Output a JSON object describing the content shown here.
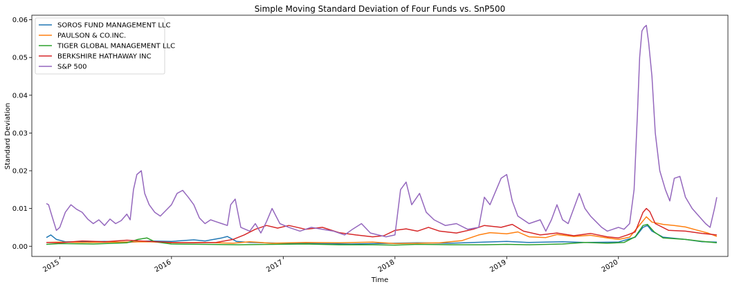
{
  "chart_data": {
    "type": "line",
    "title": "Simple Moving Standard Deviation of Four Funds vs. SnP500",
    "xlabel": "Time",
    "ylabel": "Standard Deviation",
    "xlim": [
      2014.75,
      2020.98
    ],
    "ylim": [
      -0.0027,
      0.0612
    ],
    "yticks": [
      0.0,
      0.01,
      0.02,
      0.03,
      0.04,
      0.05,
      0.06
    ],
    "ytick_labels": [
      "0.00",
      "0.01",
      "0.02",
      "0.03",
      "0.04",
      "0.05",
      "0.06"
    ],
    "xticks": [
      2015,
      2016,
      2017,
      2018,
      2019,
      2020
    ],
    "xtick_labels": [
      "2015",
      "2016",
      "2017",
      "2018",
      "2019",
      "2020"
    ],
    "grid": false,
    "legend_position": "top-left",
    "series": [
      {
        "name": "SOROS FUND MANAGEMENT LLC",
        "color": "#1f77b4",
        "points": [
          [
            2014.88,
            0.0023
          ],
          [
            2014.92,
            0.003
          ],
          [
            2014.97,
            0.0018
          ],
          [
            2015.05,
            0.0012
          ],
          [
            2015.2,
            0.0011
          ],
          [
            2015.4,
            0.0013
          ],
          [
            2015.6,
            0.001
          ],
          [
            2015.8,
            0.0014
          ],
          [
            2016.0,
            0.0013
          ],
          [
            2016.2,
            0.0017
          ],
          [
            2016.3,
            0.0014
          ],
          [
            2016.45,
            0.0022
          ],
          [
            2016.5,
            0.0026
          ],
          [
            2016.58,
            0.0013
          ],
          [
            2016.7,
            0.001
          ],
          [
            2017.0,
            0.0008
          ],
          [
            2017.3,
            0.0007
          ],
          [
            2017.6,
            0.0006
          ],
          [
            2018.0,
            0.0008
          ],
          [
            2018.2,
            0.0009
          ],
          [
            2018.5,
            0.0008
          ],
          [
            2018.8,
            0.0011
          ],
          [
            2019.0,
            0.0013
          ],
          [
            2019.2,
            0.001
          ],
          [
            2019.5,
            0.0012
          ],
          [
            2019.7,
            0.001
          ],
          [
            2020.0,
            0.0011
          ],
          [
            2020.15,
            0.0024
          ],
          [
            2020.22,
            0.005
          ],
          [
            2020.26,
            0.0055
          ],
          [
            2020.3,
            0.004
          ],
          [
            2020.4,
            0.0024
          ],
          [
            2020.6,
            0.0018
          ],
          [
            2020.75,
            0.0012
          ],
          [
            2020.88,
            0.0011
          ]
        ]
      },
      {
        "name": "PAULSON & CO.INC.",
        "color": "#ff7f0e",
        "points": [
          [
            2014.88,
            0.001
          ],
          [
            2015.0,
            0.0011
          ],
          [
            2015.2,
            0.001
          ],
          [
            2015.5,
            0.0011
          ],
          [
            2015.8,
            0.0012
          ],
          [
            2016.0,
            0.0009
          ],
          [
            2016.3,
            0.001
          ],
          [
            2016.55,
            0.0008
          ],
          [
            2016.7,
            0.0012
          ],
          [
            2016.9,
            0.0008
          ],
          [
            2017.2,
            0.001
          ],
          [
            2017.5,
            0.0009
          ],
          [
            2017.8,
            0.0011
          ],
          [
            2018.0,
            0.0007
          ],
          [
            2018.2,
            0.0008
          ],
          [
            2018.4,
            0.0009
          ],
          [
            2018.6,
            0.0015
          ],
          [
            2018.75,
            0.003
          ],
          [
            2018.85,
            0.0036
          ],
          [
            2019.0,
            0.0033
          ],
          [
            2019.1,
            0.0038
          ],
          [
            2019.2,
            0.0025
          ],
          [
            2019.35,
            0.0023
          ],
          [
            2019.45,
            0.0031
          ],
          [
            2019.6,
            0.0026
          ],
          [
            2019.75,
            0.0029
          ],
          [
            2019.9,
            0.0022
          ],
          [
            2020.0,
            0.0018
          ],
          [
            2020.1,
            0.0024
          ],
          [
            2020.2,
            0.006
          ],
          [
            2020.25,
            0.0078
          ],
          [
            2020.3,
            0.0064
          ],
          [
            2020.4,
            0.0058
          ],
          [
            2020.5,
            0.0055
          ],
          [
            2020.6,
            0.0051
          ],
          [
            2020.7,
            0.0043
          ],
          [
            2020.8,
            0.0035
          ],
          [
            2020.88,
            0.0026
          ]
        ]
      },
      {
        "name": "TIGER GLOBAL MANAGEMENT LLC",
        "color": "#2ca02c",
        "points": [
          [
            2014.88,
            0.0005
          ],
          [
            2015.0,
            0.0007
          ],
          [
            2015.3,
            0.0006
          ],
          [
            2015.6,
            0.0009
          ],
          [
            2015.7,
            0.0018
          ],
          [
            2015.78,
            0.0022
          ],
          [
            2015.85,
            0.0012
          ],
          [
            2016.0,
            0.0006
          ],
          [
            2016.3,
            0.0005
          ],
          [
            2016.6,
            0.0004
          ],
          [
            2016.9,
            0.0005
          ],
          [
            2017.2,
            0.0006
          ],
          [
            2017.5,
            0.0004
          ],
          [
            2017.8,
            0.0004
          ],
          [
            2018.0,
            0.0003
          ],
          [
            2018.2,
            0.0005
          ],
          [
            2018.5,
            0.0004
          ],
          [
            2018.8,
            0.0004
          ],
          [
            2019.0,
            0.0005
          ],
          [
            2019.2,
            0.0004
          ],
          [
            2019.5,
            0.0006
          ],
          [
            2019.7,
            0.001
          ],
          [
            2019.9,
            0.0008
          ],
          [
            2020.05,
            0.001
          ],
          [
            2020.15,
            0.0025
          ],
          [
            2020.22,
            0.0055
          ],
          [
            2020.26,
            0.0058
          ],
          [
            2020.32,
            0.0038
          ],
          [
            2020.4,
            0.0022
          ],
          [
            2020.6,
            0.0018
          ],
          [
            2020.75,
            0.0013
          ],
          [
            2020.88,
            0.0009
          ]
        ]
      },
      {
        "name": "BERKSHIRE HATHAWAY INC",
        "color": "#d62728",
        "points": [
          [
            2014.88,
            0.001
          ],
          [
            2015.0,
            0.0009
          ],
          [
            2015.2,
            0.0014
          ],
          [
            2015.4,
            0.0012
          ],
          [
            2015.6,
            0.0016
          ],
          [
            2015.8,
            0.0013
          ],
          [
            2016.0,
            0.001
          ],
          [
            2016.2,
            0.0009
          ],
          [
            2016.4,
            0.001
          ],
          [
            2016.55,
            0.0018
          ],
          [
            2016.65,
            0.003
          ],
          [
            2016.75,
            0.0045
          ],
          [
            2016.85,
            0.0055
          ],
          [
            2016.95,
            0.0048
          ],
          [
            2017.05,
            0.0055
          ],
          [
            2017.2,
            0.0045
          ],
          [
            2017.35,
            0.005
          ],
          [
            2017.5,
            0.0036
          ],
          [
            2017.65,
            0.003
          ],
          [
            2017.8,
            0.0025
          ],
          [
            2017.9,
            0.0028
          ],
          [
            2018.0,
            0.0042
          ],
          [
            2018.1,
            0.0046
          ],
          [
            2018.2,
            0.004
          ],
          [
            2018.3,
            0.005
          ],
          [
            2018.4,
            0.004
          ],
          [
            2018.55,
            0.0035
          ],
          [
            2018.7,
            0.0045
          ],
          [
            2018.8,
            0.0055
          ],
          [
            2018.95,
            0.005
          ],
          [
            2019.05,
            0.0058
          ],
          [
            2019.15,
            0.004
          ],
          [
            2019.3,
            0.003
          ],
          [
            2019.45,
            0.0035
          ],
          [
            2019.6,
            0.0028
          ],
          [
            2019.75,
            0.0034
          ],
          [
            2019.9,
            0.0025
          ],
          [
            2020.0,
            0.0022
          ],
          [
            2020.08,
            0.003
          ],
          [
            2020.15,
            0.0038
          ],
          [
            2020.22,
            0.009
          ],
          [
            2020.25,
            0.01
          ],
          [
            2020.28,
            0.0092
          ],
          [
            2020.33,
            0.006
          ],
          [
            2020.45,
            0.0042
          ],
          [
            2020.6,
            0.004
          ],
          [
            2020.75,
            0.0034
          ],
          [
            2020.88,
            0.003
          ]
        ]
      },
      {
        "name": "S&P 500",
        "color": "#9467bd",
        "points": [
          [
            2014.88,
            0.0113
          ],
          [
            2014.9,
            0.011
          ],
          [
            2014.93,
            0.008
          ],
          [
            2014.97,
            0.0042
          ],
          [
            2015.0,
            0.005
          ],
          [
            2015.05,
            0.009
          ],
          [
            2015.1,
            0.011
          ],
          [
            2015.15,
            0.0098
          ],
          [
            2015.2,
            0.009
          ],
          [
            2015.25,
            0.0072
          ],
          [
            2015.3,
            0.006
          ],
          [
            2015.35,
            0.007
          ],
          [
            2015.4,
            0.0055
          ],
          [
            2015.45,
            0.0072
          ],
          [
            2015.5,
            0.006
          ],
          [
            2015.55,
            0.0068
          ],
          [
            2015.6,
            0.0085
          ],
          [
            2015.63,
            0.007
          ],
          [
            2015.66,
            0.015
          ],
          [
            2015.69,
            0.019
          ],
          [
            2015.73,
            0.02
          ],
          [
            2015.76,
            0.014
          ],
          [
            2015.8,
            0.011
          ],
          [
            2015.85,
            0.009
          ],
          [
            2015.9,
            0.008
          ],
          [
            2015.95,
            0.0095
          ],
          [
            2016.0,
            0.011
          ],
          [
            2016.05,
            0.014
          ],
          [
            2016.1,
            0.0148
          ],
          [
            2016.15,
            0.013
          ],
          [
            2016.2,
            0.011
          ],
          [
            2016.25,
            0.0075
          ],
          [
            2016.3,
            0.006
          ],
          [
            2016.35,
            0.007
          ],
          [
            2016.4,
            0.0065
          ],
          [
            2016.45,
            0.006
          ],
          [
            2016.5,
            0.0055
          ],
          [
            2016.53,
            0.011
          ],
          [
            2016.57,
            0.0125
          ],
          [
            2016.62,
            0.005
          ],
          [
            2016.7,
            0.004
          ],
          [
            2016.75,
            0.006
          ],
          [
            2016.8,
            0.0035
          ],
          [
            2016.85,
            0.0065
          ],
          [
            2016.9,
            0.01
          ],
          [
            2016.97,
            0.006
          ],
          [
            2017.05,
            0.005
          ],
          [
            2017.15,
            0.004
          ],
          [
            2017.25,
            0.005
          ],
          [
            2017.35,
            0.0045
          ],
          [
            2017.45,
            0.004
          ],
          [
            2017.55,
            0.003
          ],
          [
            2017.62,
            0.0045
          ],
          [
            2017.7,
            0.006
          ],
          [
            2017.78,
            0.0035
          ],
          [
            2017.85,
            0.003
          ],
          [
            2017.92,
            0.0025
          ],
          [
            2018.0,
            0.003
          ],
          [
            2018.05,
            0.015
          ],
          [
            2018.1,
            0.017
          ],
          [
            2018.15,
            0.011
          ],
          [
            2018.22,
            0.014
          ],
          [
            2018.28,
            0.009
          ],
          [
            2018.35,
            0.007
          ],
          [
            2018.45,
            0.0055
          ],
          [
            2018.55,
            0.006
          ],
          [
            2018.65,
            0.0045
          ],
          [
            2018.75,
            0.005
          ],
          [
            2018.8,
            0.013
          ],
          [
            2018.85,
            0.011
          ],
          [
            2018.95,
            0.018
          ],
          [
            2019.0,
            0.019
          ],
          [
            2019.05,
            0.012
          ],
          [
            2019.1,
            0.008
          ],
          [
            2019.2,
            0.006
          ],
          [
            2019.3,
            0.007
          ],
          [
            2019.35,
            0.004
          ],
          [
            2019.4,
            0.007
          ],
          [
            2019.45,
            0.011
          ],
          [
            2019.5,
            0.007
          ],
          [
            2019.55,
            0.006
          ],
          [
            2019.6,
            0.01
          ],
          [
            2019.65,
            0.014
          ],
          [
            2019.7,
            0.01
          ],
          [
            2019.75,
            0.008
          ],
          [
            2019.8,
            0.0065
          ],
          [
            2019.85,
            0.005
          ],
          [
            2019.9,
            0.004
          ],
          [
            2019.95,
            0.0045
          ],
          [
            2020.0,
            0.005
          ],
          [
            2020.05,
            0.0045
          ],
          [
            2020.1,
            0.006
          ],
          [
            2020.14,
            0.015
          ],
          [
            2020.17,
            0.035
          ],
          [
            2020.19,
            0.05
          ],
          [
            2020.21,
            0.057
          ],
          [
            2020.23,
            0.058
          ],
          [
            2020.25,
            0.0585
          ],
          [
            2020.27,
            0.054
          ],
          [
            2020.3,
            0.045
          ],
          [
            2020.33,
            0.03
          ],
          [
            2020.37,
            0.02
          ],
          [
            2020.42,
            0.015
          ],
          [
            2020.46,
            0.012
          ],
          [
            2020.5,
            0.018
          ],
          [
            2020.55,
            0.0185
          ],
          [
            2020.6,
            0.013
          ],
          [
            2020.66,
            0.01
          ],
          [
            2020.72,
            0.008
          ],
          [
            2020.78,
            0.006
          ],
          [
            2020.82,
            0.005
          ],
          [
            2020.86,
            0.01
          ],
          [
            2020.88,
            0.013
          ]
        ]
      }
    ]
  }
}
